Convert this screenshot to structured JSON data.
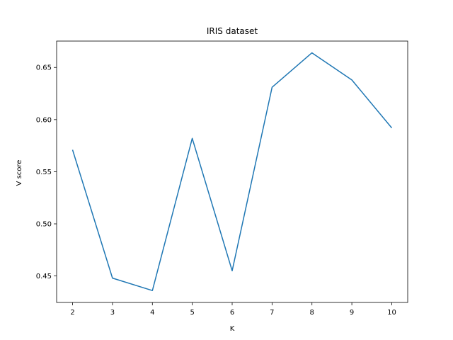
{
  "chart_data": {
    "type": "line",
    "title": "IRIS dataset",
    "xlabel": "K",
    "ylabel": "V score",
    "x": [
      2,
      3,
      4,
      5,
      6,
      7,
      8,
      9,
      10
    ],
    "series": [
      {
        "values": [
          0.571,
          0.448,
          0.436,
          0.582,
          0.455,
          0.631,
          0.664,
          0.638,
          0.592
        ]
      }
    ],
    "xticks": [
      "2",
      "3",
      "4",
      "5",
      "6",
      "7",
      "8",
      "9",
      "10"
    ],
    "yticks": [
      "0.45",
      "0.50",
      "0.55",
      "0.60",
      "0.65"
    ],
    "xlim": [
      1.6,
      10.4
    ],
    "ylim": [
      0.4246,
      0.6753
    ],
    "grid": false,
    "colors": {
      "line": "#1f77b4",
      "axes": "#000000",
      "background": "#ffffff"
    }
  }
}
